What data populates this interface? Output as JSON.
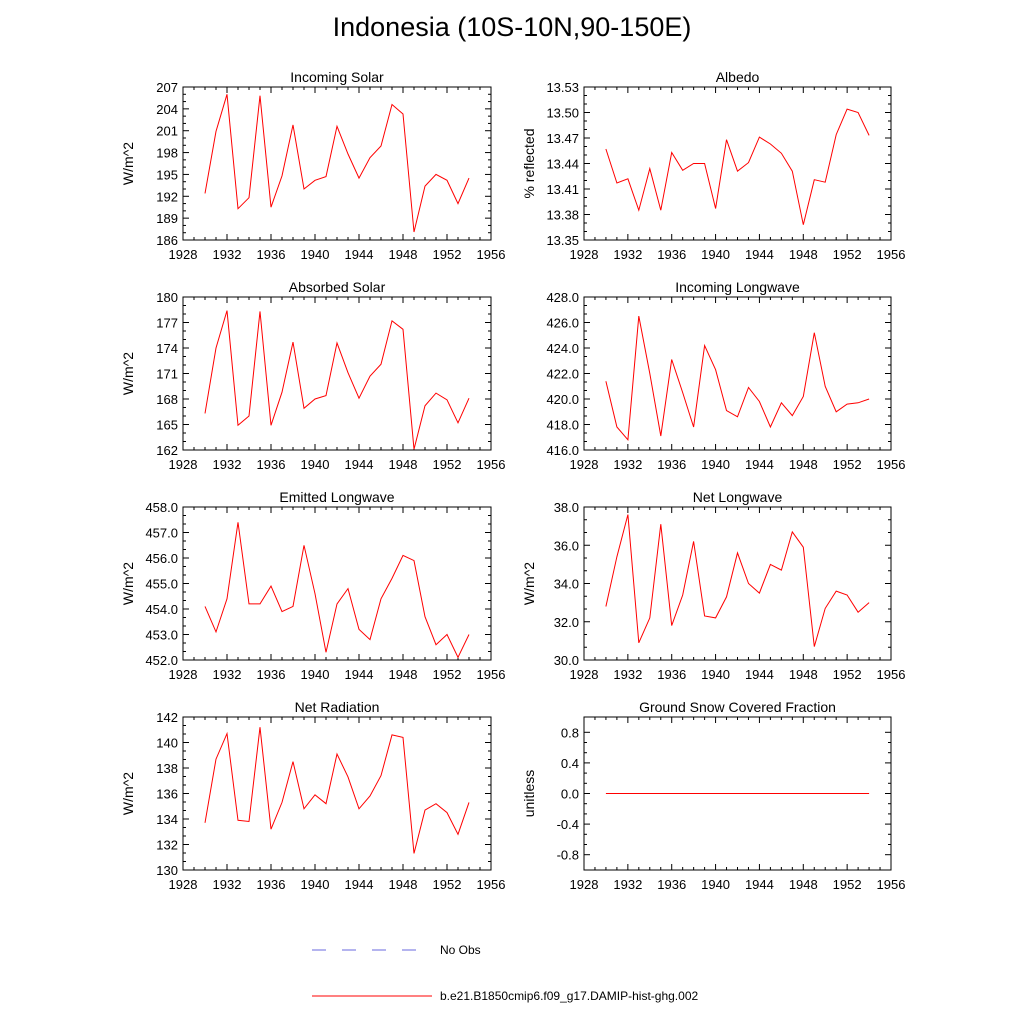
{
  "figure": {
    "title": "Indonesia (10S-10N,90-150E)",
    "legend": [
      {
        "label": "No Obs",
        "color": "#6a6adf",
        "style": "dashed"
      },
      {
        "label": "b.e21.B1850cmip6.f09_g17.DAMIP-hist-ghg.002",
        "color": "#ff0000",
        "style": "solid"
      }
    ]
  },
  "chart_data": [
    {
      "type": "line",
      "title": "Incoming Solar",
      "ylabel": "W/m^2",
      "xlabel": "",
      "xlim": [
        1928,
        1956
      ],
      "xticks": [
        1928,
        1932,
        1936,
        1940,
        1944,
        1948,
        1952,
        1956
      ],
      "ylim": [
        186,
        207
      ],
      "yticks": [
        186,
        189,
        192,
        195,
        198,
        201,
        204,
        207
      ],
      "ytick_labels": [
        "186",
        "189",
        "192",
        "195",
        "198",
        "201",
        "204",
        "207"
      ],
      "series": [
        {
          "name": "b.e21.B1850cmip6.f09_g17.DAMIP-hist-ghg.002",
          "color": "#ff0000",
          "x": [
            1930,
            1931,
            1932,
            1933,
            1934,
            1935,
            1936,
            1937,
            1938,
            1939,
            1940,
            1941,
            1942,
            1943,
            1944,
            1945,
            1946,
            1947,
            1948,
            1949,
            1950,
            1951,
            1952,
            1953,
            1954
          ],
          "y": [
            192.4,
            200.9,
            206.0,
            190.3,
            191.8,
            205.8,
            190.5,
            194.8,
            201.8,
            193.0,
            194.2,
            194.7,
            201.6,
            197.8,
            194.5,
            197.3,
            198.9,
            204.6,
            203.3,
            187.1,
            193.4,
            195.0,
            194.2,
            191.0,
            194.5
          ]
        }
      ]
    },
    {
      "type": "line",
      "title": "Albedo",
      "ylabel": "% reflected",
      "xlabel": "",
      "xlim": [
        1928,
        1956
      ],
      "xticks": [
        1928,
        1932,
        1936,
        1940,
        1944,
        1948,
        1952,
        1956
      ],
      "ylim": [
        13.35,
        13.53
      ],
      "yticks": [
        13.35,
        13.38,
        13.41,
        13.44,
        13.47,
        13.5,
        13.53
      ],
      "ytick_labels": [
        "13.35",
        "13.38",
        "13.41",
        "13.44",
        "13.47",
        "13.50",
        "13.53"
      ],
      "series": [
        {
          "name": "b.e21.B1850cmip6.f09_g17.DAMIP-hist-ghg.002",
          "color": "#ff0000",
          "x": [
            1930,
            1931,
            1932,
            1933,
            1934,
            1935,
            1936,
            1937,
            1938,
            1939,
            1940,
            1941,
            1942,
            1943,
            1944,
            1945,
            1946,
            1947,
            1948,
            1949,
            1950,
            1951,
            1952,
            1953,
            1954
          ],
          "y": [
            13.457,
            13.417,
            13.422,
            13.385,
            13.434,
            13.385,
            13.453,
            13.432,
            13.44,
            13.44,
            13.387,
            13.468,
            13.431,
            13.441,
            13.471,
            13.463,
            13.452,
            13.431,
            13.368,
            13.421,
            13.418,
            13.474,
            13.504,
            13.5,
            13.473
          ]
        }
      ]
    },
    {
      "type": "line",
      "title": "Absorbed Solar",
      "ylabel": "W/m^2",
      "xlabel": "",
      "xlim": [
        1928,
        1956
      ],
      "xticks": [
        1928,
        1932,
        1936,
        1940,
        1944,
        1948,
        1952,
        1956
      ],
      "ylim": [
        162,
        180
      ],
      "yticks": [
        162,
        165,
        168,
        171,
        174,
        177,
        180
      ],
      "ytick_labels": [
        "162",
        "165",
        "168",
        "171",
        "174",
        "177",
        "180"
      ],
      "series": [
        {
          "name": "b.e21.B1850cmip6.f09_g17.DAMIP-hist-ghg.002",
          "color": "#ff0000",
          "x": [
            1930,
            1931,
            1932,
            1933,
            1934,
            1935,
            1936,
            1937,
            1938,
            1939,
            1940,
            1941,
            1942,
            1943,
            1944,
            1945,
            1946,
            1947,
            1948,
            1949,
            1950,
            1951,
            1952,
            1953,
            1954
          ],
          "y": [
            166.3,
            174.0,
            178.4,
            164.9,
            166.0,
            178.3,
            164.9,
            168.8,
            174.7,
            166.9,
            168.0,
            168.4,
            174.6,
            171.1,
            168.1,
            170.7,
            172.1,
            177.2,
            176.2,
            162.1,
            167.2,
            168.7,
            167.9,
            165.2,
            168.1
          ]
        }
      ]
    },
    {
      "type": "line",
      "title": "Incoming Longwave",
      "ylabel": "",
      "xlabel": "",
      "xlim": [
        1928,
        1956
      ],
      "xticks": [
        1928,
        1932,
        1936,
        1940,
        1944,
        1948,
        1952,
        1956
      ],
      "ylim": [
        416.0,
        428.0
      ],
      "yticks": [
        416,
        418,
        420,
        422,
        424,
        426,
        428
      ],
      "ytick_labels": [
        "416.0",
        "418.0",
        "420.0",
        "422.0",
        "424.0",
        "426.0",
        "428.0"
      ],
      "series": [
        {
          "name": "b.e21.B1850cmip6.f09_g17.DAMIP-hist-ghg.002",
          "color": "#ff0000",
          "x": [
            1930,
            1931,
            1932,
            1933,
            1934,
            1935,
            1936,
            1937,
            1938,
            1939,
            1940,
            1941,
            1942,
            1943,
            1944,
            1945,
            1946,
            1947,
            1948,
            1949,
            1950,
            1951,
            1952,
            1953,
            1954
          ],
          "y": [
            421.4,
            417.8,
            416.8,
            426.5,
            422.0,
            417.1,
            423.1,
            420.5,
            417.8,
            424.2,
            422.3,
            419.1,
            418.6,
            420.9,
            419.8,
            417.8,
            419.7,
            418.7,
            420.2,
            425.2,
            421.0,
            419.0,
            419.6,
            419.7,
            420.0
          ]
        }
      ]
    },
    {
      "type": "line",
      "title": "Emitted Longwave",
      "ylabel": "W/m^2",
      "xlabel": "",
      "xlim": [
        1928,
        1956
      ],
      "xticks": [
        1928,
        1932,
        1936,
        1940,
        1944,
        1948,
        1952,
        1956
      ],
      "ylim": [
        452.0,
        458.0
      ],
      "yticks": [
        452,
        453,
        454,
        455,
        456,
        457,
        458
      ],
      "ytick_labels": [
        "452.0",
        "453.0",
        "454.0",
        "455.0",
        "456.0",
        "457.0",
        "458.0"
      ],
      "series": [
        {
          "name": "b.e21.B1850cmip6.f09_g17.DAMIP-hist-ghg.002",
          "color": "#ff0000",
          "x": [
            1930,
            1931,
            1932,
            1933,
            1934,
            1935,
            1936,
            1937,
            1938,
            1939,
            1940,
            1941,
            1942,
            1943,
            1944,
            1945,
            1946,
            1947,
            1948,
            1949,
            1950,
            1951,
            1952,
            1953,
            1954
          ],
          "y": [
            454.1,
            453.1,
            454.4,
            457.4,
            454.2,
            454.2,
            454.9,
            453.9,
            454.1,
            456.5,
            454.6,
            452.3,
            454.2,
            454.8,
            453.2,
            452.8,
            454.4,
            455.2,
            456.1,
            455.9,
            453.7,
            452.6,
            453.0,
            452.1,
            453.0
          ]
        }
      ]
    },
    {
      "type": "line",
      "title": "Net Longwave",
      "ylabel": "W/m^2",
      "xlabel": "",
      "xlim": [
        1928,
        1956
      ],
      "xticks": [
        1928,
        1932,
        1936,
        1940,
        1944,
        1948,
        1952,
        1956
      ],
      "ylim": [
        30.0,
        38.0
      ],
      "yticks": [
        30,
        32,
        34,
        36,
        38
      ],
      "ytick_labels": [
        "30.0",
        "32.0",
        "34.0",
        "36.0",
        "38.0"
      ],
      "series": [
        {
          "name": "b.e21.B1850cmip6.f09_g17.DAMIP-hist-ghg.002",
          "color": "#ff0000",
          "x": [
            1930,
            1931,
            1932,
            1933,
            1934,
            1935,
            1936,
            1937,
            1938,
            1939,
            1940,
            1941,
            1942,
            1943,
            1944,
            1945,
            1946,
            1947,
            1948,
            1949,
            1950,
            1951,
            1952,
            1953,
            1954
          ],
          "y": [
            32.8,
            35.4,
            37.6,
            30.9,
            32.2,
            37.1,
            31.8,
            33.4,
            36.2,
            32.3,
            32.2,
            33.3,
            35.6,
            34.0,
            33.5,
            35.0,
            34.7,
            36.7,
            35.9,
            30.7,
            32.7,
            33.6,
            33.4,
            32.5,
            33.0
          ]
        }
      ]
    },
    {
      "type": "line",
      "title": "Net Radiation",
      "ylabel": "W/m^2",
      "xlabel": "",
      "xlim": [
        1928,
        1956
      ],
      "xticks": [
        1928,
        1932,
        1936,
        1940,
        1944,
        1948,
        1952,
        1956
      ],
      "ylim": [
        130,
        142
      ],
      "yticks": [
        130,
        132,
        134,
        136,
        138,
        140,
        142
      ],
      "ytick_labels": [
        "130",
        "132",
        "134",
        "136",
        "138",
        "140",
        "142"
      ],
      "series": [
        {
          "name": "b.e21.B1850cmip6.f09_g17.DAMIP-hist-ghg.002",
          "color": "#ff0000",
          "x": [
            1930,
            1931,
            1932,
            1933,
            1934,
            1935,
            1936,
            1937,
            1938,
            1939,
            1940,
            1941,
            1942,
            1943,
            1944,
            1945,
            1946,
            1947,
            1948,
            1949,
            1950,
            1951,
            1952,
            1953,
            1954
          ],
          "y": [
            133.7,
            138.7,
            140.7,
            133.9,
            133.8,
            141.2,
            133.2,
            135.3,
            138.5,
            134.8,
            135.9,
            135.2,
            139.1,
            137.3,
            134.8,
            135.8,
            137.4,
            140.6,
            140.4,
            131.3,
            134.7,
            135.2,
            134.5,
            132.8,
            135.3
          ]
        }
      ]
    },
    {
      "type": "line",
      "title": "Ground Snow Covered Fraction",
      "ylabel": "unitless",
      "xlabel": "",
      "xlim": [
        1928,
        1956
      ],
      "xticks": [
        1928,
        1932,
        1936,
        1940,
        1944,
        1948,
        1952,
        1956
      ],
      "ylim": [
        -1.0,
        1.0
      ],
      "yticks": [
        -0.8,
        -0.4,
        0.0,
        0.4,
        0.8
      ],
      "ytick_labels": [
        "-0.8",
        "-0.4",
        "0.0",
        "0.4",
        "0.8"
      ],
      "series": [
        {
          "name": "b.e21.B1850cmip6.f09_g17.DAMIP-hist-ghg.002",
          "color": "#ff0000",
          "x": [
            1930,
            1931,
            1932,
            1933,
            1934,
            1935,
            1936,
            1937,
            1938,
            1939,
            1940,
            1941,
            1942,
            1943,
            1944,
            1945,
            1946,
            1947,
            1948,
            1949,
            1950,
            1951,
            1952,
            1953,
            1954
          ],
          "y": [
            0,
            0,
            0,
            0,
            0,
            0,
            0,
            0,
            0,
            0,
            0,
            0,
            0,
            0,
            0,
            0,
            0,
            0,
            0,
            0,
            0,
            0,
            0,
            0,
            0
          ]
        }
      ]
    }
  ]
}
